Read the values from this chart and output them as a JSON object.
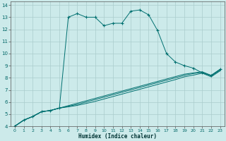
{
  "xlabel": "Humidex (Indice chaleur)",
  "bg_color": "#cceaea",
  "grid_color": "#aacccc",
  "line_color": "#007070",
  "xlim": [
    -0.5,
    23.5
  ],
  "ylim": [
    4,
    14.3
  ],
  "xticks": [
    0,
    1,
    2,
    3,
    4,
    5,
    6,
    7,
    8,
    9,
    10,
    11,
    12,
    13,
    14,
    15,
    16,
    17,
    18,
    19,
    20,
    21,
    22,
    23
  ],
  "yticks": [
    4,
    5,
    6,
    7,
    8,
    9,
    10,
    11,
    12,
    13,
    14
  ],
  "series": [
    {
      "x": [
        0,
        1,
        2,
        3,
        4,
        5,
        6,
        7,
        8,
        9,
        10,
        11,
        12,
        13,
        14,
        15,
        16,
        17,
        18,
        19,
        20,
        21,
        22,
        23
      ],
      "y": [
        4.0,
        4.5,
        4.8,
        5.2,
        5.3,
        5.5,
        13.0,
        13.3,
        13.0,
        13.0,
        12.3,
        12.5,
        12.5,
        13.5,
        13.6,
        13.2,
        11.9,
        10.0,
        9.3,
        9.0,
        8.8,
        8.4,
        8.2,
        8.7
      ],
      "marker": "+"
    },
    {
      "x": [
        0,
        1,
        2,
        3,
        4,
        5,
        6,
        7,
        8,
        9,
        10,
        11,
        12,
        13,
        14,
        15,
        16,
        17,
        18,
        19,
        20,
        21,
        22,
        23
      ],
      "y": [
        4.0,
        4.5,
        4.8,
        5.2,
        5.3,
        5.5,
        5.7,
        5.9,
        6.1,
        6.3,
        6.5,
        6.7,
        6.9,
        7.1,
        7.3,
        7.5,
        7.7,
        7.9,
        8.1,
        8.3,
        8.4,
        8.5,
        8.2,
        8.7
      ],
      "marker": null
    },
    {
      "x": [
        0,
        1,
        2,
        3,
        4,
        5,
        6,
        7,
        8,
        9,
        10,
        11,
        12,
        13,
        14,
        15,
        16,
        17,
        18,
        19,
        20,
        21,
        22,
        23
      ],
      "y": [
        4.0,
        4.5,
        4.8,
        5.2,
        5.3,
        5.5,
        5.65,
        5.8,
        6.0,
        6.2,
        6.4,
        6.6,
        6.8,
        7.0,
        7.2,
        7.4,
        7.6,
        7.8,
        8.0,
        8.2,
        8.35,
        8.45,
        8.15,
        8.62
      ],
      "marker": null
    },
    {
      "x": [
        0,
        1,
        2,
        3,
        4,
        5,
        6,
        7,
        8,
        9,
        10,
        11,
        12,
        13,
        14,
        15,
        16,
        17,
        18,
        19,
        20,
        21,
        22,
        23
      ],
      "y": [
        4.0,
        4.5,
        4.8,
        5.2,
        5.3,
        5.5,
        5.6,
        5.72,
        5.88,
        6.05,
        6.25,
        6.45,
        6.65,
        6.85,
        7.05,
        7.25,
        7.45,
        7.65,
        7.85,
        8.08,
        8.22,
        8.38,
        8.08,
        8.57
      ],
      "marker": null
    }
  ]
}
